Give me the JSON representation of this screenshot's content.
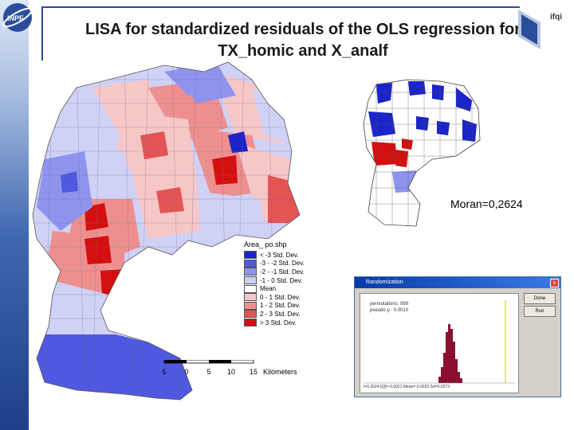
{
  "title": {
    "line1": "LISA for standardized residuals of the OLS regression for",
    "line2": "TX_homic and  X_analf"
  },
  "corner_label": "ifqi",
  "moran_label": "Moran=0,2624",
  "legend": {
    "title": "Area_  po.shp",
    "items": [
      {
        "label": "< -3 Std. Dev.",
        "color": "#1a24c8"
      },
      {
        "label": "-3 - -2 Std. Dev.",
        "color": "#4f58e0"
      },
      {
        "label": "-2 - -1 Std. Dev.",
        "color": "#8e94ee"
      },
      {
        "label": "-1 - 0 Std. Dev.",
        "color": "#cfd2f6"
      },
      {
        "label": "Mean",
        "color": "#ffffff"
      },
      {
        "label": "0 - 1 Std. Dev.",
        "color": "#f6c7c7"
      },
      {
        "label": "1 - 2 Std. Dev.",
        "color": "#ee8f8f"
      },
      {
        "label": "2 - 3 Std. Dev.",
        "color": "#e45454"
      },
      {
        "label": "> 3 Std. Dev.",
        "color": "#d40f0f"
      }
    ]
  },
  "scale": {
    "ticks": [
      "5",
      "0",
      "5",
      "10",
      "15"
    ],
    "unit": "Kilometers"
  },
  "dialog": {
    "title": "Randomization",
    "stats_line1": "permutations: 999",
    "stats_line2": "pseudo p.: 0.0010",
    "ok_label": "Done",
    "run_label": "Run",
    "close_glyph": "x",
    "footer": "I=0.2624   E[I]=-0.0021   Mean=-0.0023   Sd=0.0273"
  }
}
